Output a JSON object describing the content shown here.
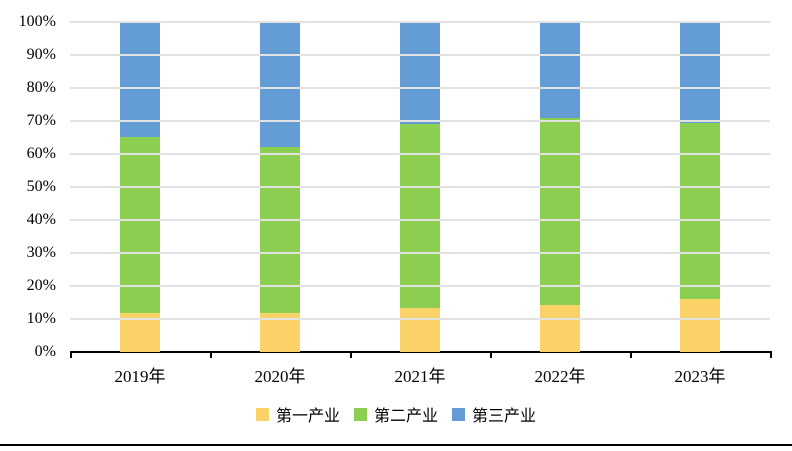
{
  "chart_data": {
    "type": "bar",
    "subtype": "stacked-100-percent",
    "title": "",
    "xlabel": "",
    "ylabel": "",
    "categories": [
      "2019年",
      "2020年",
      "2021年",
      "2022年",
      "2023年"
    ],
    "series": [
      {
        "name": "第一产业",
        "color": "#FBD267",
        "values": [
          11.9,
          11.9,
          13.2,
          14.2,
          16.0
        ],
        "labels": [
          "11.9",
          "11.9",
          "13.2",
          "14.2",
          "16.0"
        ]
      },
      {
        "name": "第二产业",
        "color": "#8CCE4F",
        "values": [
          53.4,
          50.2,
          55.8,
          56.6,
          53.4
        ],
        "labels": [
          "53.4",
          "50.2",
          "55.8",
          "56.6",
          "53.4"
        ]
      },
      {
        "name": "第三产业",
        "color": "#649CD5",
        "values": [
          34.7,
          37.9,
          31.0,
          29.2,
          30.6
        ],
        "labels": [
          "34.7",
          "37.9",
          "31.0",
          "29.2",
          "30.6"
        ]
      }
    ],
    "y_axis": {
      "tick_labels": [
        "0%",
        "10%",
        "20%",
        "30%",
        "40%",
        "50%",
        "60%",
        "70%",
        "80%",
        "90%",
        "100%"
      ],
      "min": 0,
      "max": 100,
      "step": 10,
      "grid": true,
      "gridline_color": "#e2e2e2"
    },
    "legend": {
      "position": "bottom",
      "entries": [
        "第一产业",
        "第二产业",
        "第三产业"
      ]
    },
    "data_label_color": "#404040",
    "axis_line_color": "#000000"
  }
}
